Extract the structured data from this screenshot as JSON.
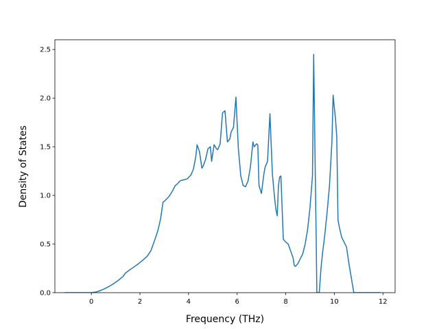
{
  "chart_data": {
    "type": "line",
    "title": "",
    "xlabel": "Frequency (THz)",
    "ylabel": "Density of States",
    "xlim": [
      -1.5,
      12.5
    ],
    "ylim": [
      0,
      2.6
    ],
    "xticks": [
      0,
      2,
      4,
      6,
      8,
      10,
      12
    ],
    "xtick_labels": [
      "0",
      "2",
      "4",
      "6",
      "8",
      "10",
      "12"
    ],
    "yticks": [
      0.0,
      0.5,
      1.0,
      1.5,
      2.0,
      2.5
    ],
    "ytick_labels": [
      "0.0",
      "0.5",
      "1.0",
      "1.5",
      "2.0",
      "2.5"
    ],
    "grid": false,
    "legend": "none",
    "line_color": "#1f77b4",
    "series": [
      {
        "x": [
          -1.1,
          -0.5,
          0.0,
          0.15,
          0.3,
          0.5,
          0.7,
          0.9,
          1.1,
          1.3,
          1.4,
          1.5,
          1.7,
          1.9,
          2.1,
          2.3,
          2.45,
          2.55,
          2.65,
          2.75,
          2.85,
          2.95,
          3.05,
          3.2,
          3.35,
          3.45,
          3.55,
          3.65,
          3.8,
          3.95,
          4.1,
          4.2,
          4.3,
          4.35,
          4.45,
          4.55,
          4.6,
          4.7,
          4.8,
          4.9,
          4.95,
          5.05,
          5.15,
          5.2,
          5.3,
          5.4,
          5.5,
          5.6,
          5.7,
          5.75,
          5.85,
          5.95,
          6.05,
          6.15,
          6.25,
          6.35,
          6.45,
          6.55,
          6.65,
          6.7,
          6.8,
          6.85,
          6.9,
          7.0,
          7.1,
          7.15,
          7.25,
          7.35,
          7.45,
          7.55,
          7.6,
          7.65,
          7.7,
          7.75,
          7.8,
          7.9,
          8.0,
          8.1,
          8.2,
          8.3,
          8.35,
          8.4,
          8.5,
          8.6,
          8.7,
          8.8,
          8.9,
          9.0,
          9.1,
          9.15,
          9.2,
          9.25,
          9.28,
          9.32,
          9.38,
          9.45,
          9.52,
          9.6,
          9.7,
          9.8,
          9.9,
          9.95,
          10.0,
          10.05,
          10.1,
          10.15,
          10.2,
          10.3,
          10.4,
          10.5,
          10.6,
          10.7,
          10.8,
          11.0,
          11.5,
          11.9
        ],
        "y": [
          0.0,
          0.0,
          0.0,
          0.005,
          0.015,
          0.035,
          0.06,
          0.09,
          0.125,
          0.165,
          0.2,
          0.22,
          0.255,
          0.29,
          0.33,
          0.375,
          0.43,
          0.5,
          0.57,
          0.65,
          0.76,
          0.93,
          0.95,
          0.99,
          1.05,
          1.1,
          1.12,
          1.15,
          1.16,
          1.17,
          1.21,
          1.27,
          1.4,
          1.52,
          1.45,
          1.28,
          1.3,
          1.37,
          1.48,
          1.5,
          1.35,
          1.52,
          1.48,
          1.47,
          1.53,
          1.85,
          1.87,
          1.55,
          1.58,
          1.65,
          1.7,
          2.01,
          1.48,
          1.2,
          1.1,
          1.09,
          1.15,
          1.3,
          1.55,
          1.5,
          1.53,
          1.52,
          1.1,
          1.02,
          1.22,
          1.29,
          1.35,
          1.84,
          1.22,
          0.95,
          0.85,
          0.79,
          1.1,
          1.19,
          1.2,
          0.55,
          0.52,
          0.5,
          0.43,
          0.36,
          0.28,
          0.27,
          0.3,
          0.35,
          0.4,
          0.5,
          0.65,
          0.88,
          1.2,
          2.45,
          1.5,
          0.6,
          0.0,
          0.0,
          0.0,
          0.25,
          0.42,
          0.58,
          0.82,
          1.1,
          1.55,
          2.03,
          1.9,
          1.78,
          1.6,
          0.75,
          0.68,
          0.57,
          0.52,
          0.47,
          0.3,
          0.15,
          0.0,
          0.0,
          0.0,
          0.0
        ]
      }
    ]
  }
}
